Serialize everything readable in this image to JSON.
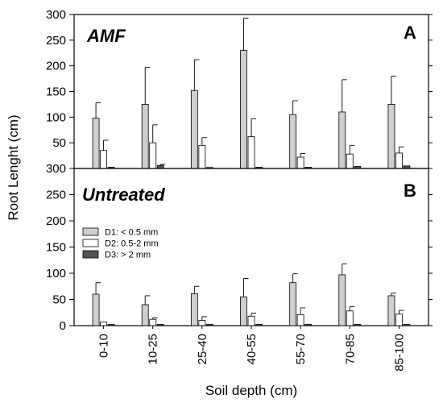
{
  "chart_data": {
    "type": "bar",
    "xlabel": "Soil depth (cm)",
    "ylabel": "Root Lenght (cm)",
    "categories": [
      "0-10",
      "10-25",
      "25-40",
      "40-55",
      "55-70",
      "70-85",
      "85-100"
    ],
    "series_legend": [
      {
        "name": "D1: < 0.5 mm",
        "color": "#cfcfcf"
      },
      {
        "name": "D2: 0.5-2 mm",
        "color": "#ffffff"
      },
      {
        "name": "D3: > 2 mm",
        "color": "#555555"
      }
    ],
    "panels": [
      {
        "title": "AMF",
        "letter": "A",
        "ylim": [
          0,
          300
        ],
        "yticks": [
          50,
          100,
          150,
          200,
          250,
          300
        ],
        "legend": false,
        "series": [
          {
            "values": [
              98,
              125,
              152,
              230,
              105,
              110,
              125
            ],
            "errors": [
              30,
              72,
              60,
              63,
              27,
              63,
              55
            ]
          },
          {
            "values": [
              35,
              50,
              45,
              62,
              22,
              28,
              30
            ],
            "errors": [
              20,
              35,
              15,
              35,
              7,
              17,
              12
            ]
          },
          {
            "values": [
              0,
              6,
              2,
              0,
              0,
              4,
              5
            ],
            "errors": [
              0,
              2,
              0,
              0,
              0,
              0,
              0
            ]
          }
        ]
      },
      {
        "title": "Untreated",
        "letter": "B",
        "ylim": [
          0,
          300
        ],
        "yticks": [
          0,
          50,
          100,
          150,
          200,
          250,
          300
        ],
        "legend": true,
        "series": [
          {
            "values": [
              60,
              40,
              61,
              55,
              82,
              97,
              57
            ],
            "errors": [
              22,
              17,
              14,
              35,
              17,
              21,
              5
            ]
          },
          {
            "values": [
              7,
              12,
              10,
              18,
              21,
              28,
              22
            ],
            "errors": [
              0,
              3,
              7,
              6,
              13,
              8,
              7
            ]
          },
          {
            "values": [
              0,
              0,
              0,
              0,
              0,
              0,
              0
            ],
            "errors": [
              0,
              0,
              0,
              0,
              0,
              0,
              0
            ]
          }
        ]
      }
    ]
  }
}
